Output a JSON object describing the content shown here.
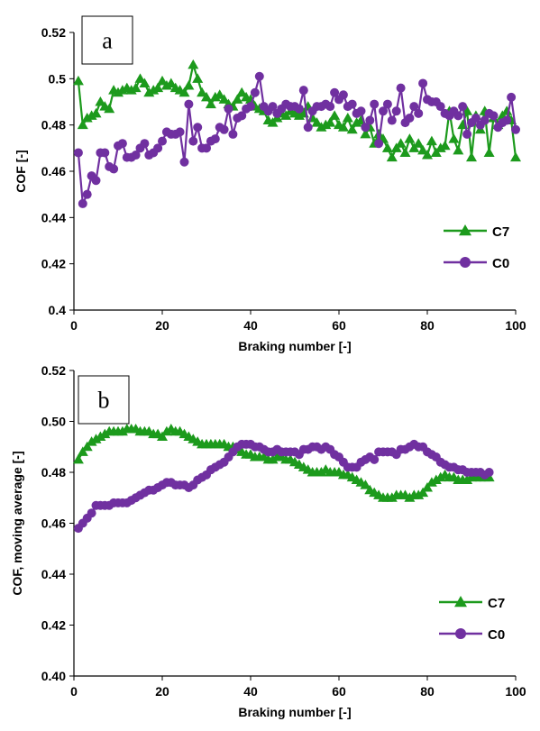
{
  "chart_data": [
    {
      "panel_label": "a",
      "type": "line",
      "title": "",
      "xlabel": "Braking number [-]",
      "ylabel": "COF [-]",
      "xlim": [
        0,
        100
      ],
      "ylim": [
        0.4,
        0.52
      ],
      "xticks": [
        0,
        20,
        40,
        60,
        80,
        100
      ],
      "yticks": [
        0.4,
        0.42,
        0.44,
        0.46,
        0.48,
        0.5,
        0.52
      ],
      "ytick_labels": [
        "0.4",
        "0.42",
        "0.44",
        "0.46",
        "0.48",
        "0.5",
        "0.52"
      ],
      "grid": false,
      "legend": "right",
      "series": [
        {
          "name": "C7",
          "color": "#1c9a1c",
          "marker": "triangle",
          "x": [
            1,
            2,
            3,
            4,
            5,
            6,
            7,
            8,
            9,
            10,
            11,
            12,
            13,
            14,
            15,
            16,
            17,
            18,
            19,
            20,
            21,
            22,
            23,
            24,
            25,
            26,
            27,
            28,
            29,
            30,
            31,
            32,
            33,
            34,
            35,
            36,
            37,
            38,
            39,
            40,
            41,
            42,
            43,
            44,
            45,
            46,
            47,
            48,
            49,
            50,
            51,
            52,
            53,
            54,
            55,
            56,
            57,
            58,
            59,
            60,
            61,
            62,
            63,
            64,
            65,
            66,
            67,
            68,
            69,
            70,
            71,
            72,
            73,
            74,
            75,
            76,
            77,
            78,
            79,
            80,
            81,
            82,
            83,
            84,
            85,
            86,
            87,
            88,
            89,
            90,
            91,
            92,
            93,
            94,
            95,
            96,
            97,
            98,
            99,
            100
          ],
          "y": [
            0.499,
            0.48,
            0.483,
            0.484,
            0.485,
            0.49,
            0.488,
            0.487,
            0.495,
            0.494,
            0.495,
            0.496,
            0.495,
            0.496,
            0.5,
            0.498,
            0.494,
            0.495,
            0.496,
            0.499,
            0.497,
            0.498,
            0.496,
            0.495,
            0.494,
            0.497,
            0.506,
            0.5,
            0.494,
            0.492,
            0.489,
            0.492,
            0.493,
            0.491,
            0.489,
            0.488,
            0.491,
            0.494,
            0.492,
            0.491,
            0.488,
            0.487,
            0.486,
            0.482,
            0.481,
            0.483,
            0.485,
            0.484,
            0.486,
            0.485,
            0.484,
            0.485,
            0.488,
            0.483,
            0.481,
            0.479,
            0.48,
            0.481,
            0.484,
            0.48,
            0.479,
            0.483,
            0.478,
            0.481,
            0.482,
            0.476,
            0.479,
            0.472,
            0.476,
            0.474,
            0.47,
            0.466,
            0.47,
            0.472,
            0.468,
            0.474,
            0.47,
            0.472,
            0.469,
            0.467,
            0.473,
            0.468,
            0.47,
            0.471,
            0.486,
            0.474,
            0.469,
            0.48,
            0.486,
            0.466,
            0.484,
            0.478,
            0.486,
            0.468,
            0.483,
            0.48,
            0.484,
            0.486,
            0.482,
            0.466
          ]
        },
        {
          "name": "C0",
          "color": "#7030a0",
          "marker": "circle",
          "x": [
            1,
            2,
            3,
            4,
            5,
            6,
            7,
            8,
            9,
            10,
            11,
            12,
            13,
            14,
            15,
            16,
            17,
            18,
            19,
            20,
            21,
            22,
            23,
            24,
            25,
            26,
            27,
            28,
            29,
            30,
            31,
            32,
            33,
            34,
            35,
            36,
            37,
            38,
            39,
            40,
            41,
            42,
            43,
            44,
            45,
            46,
            47,
            48,
            49,
            50,
            51,
            52,
            53,
            54,
            55,
            56,
            57,
            58,
            59,
            60,
            61,
            62,
            63,
            64,
            65,
            66,
            67,
            68,
            69,
            70,
            71,
            72,
            73,
            74,
            75,
            76,
            77,
            78,
            79,
            80,
            81,
            82,
            83,
            84,
            85,
            86,
            87,
            88,
            89,
            90,
            91,
            92,
            93,
            94,
            95,
            96,
            97,
            98,
            99,
            100
          ],
          "y": [
            0.468,
            0.446,
            0.45,
            0.458,
            0.456,
            0.468,
            0.468,
            0.462,
            0.461,
            0.471,
            0.472,
            0.466,
            0.466,
            0.467,
            0.47,
            0.472,
            0.467,
            0.468,
            0.47,
            0.473,
            0.477,
            0.476,
            0.476,
            0.477,
            0.464,
            0.489,
            0.473,
            0.479,
            0.47,
            0.47,
            0.473,
            0.474,
            0.479,
            0.478,
            0.487,
            0.476,
            0.483,
            0.484,
            0.487,
            0.488,
            0.494,
            0.501,
            0.488,
            0.486,
            0.488,
            0.485,
            0.487,
            0.489,
            0.488,
            0.488,
            0.487,
            0.495,
            0.479,
            0.486,
            0.488,
            0.488,
            0.489,
            0.488,
            0.494,
            0.491,
            0.493,
            0.488,
            0.489,
            0.485,
            0.486,
            0.479,
            0.482,
            0.489,
            0.472,
            0.486,
            0.489,
            0.482,
            0.486,
            0.496,
            0.481,
            0.483,
            0.488,
            0.485,
            0.498,
            0.491,
            0.49,
            0.49,
            0.488,
            0.485,
            0.484,
            0.486,
            0.484,
            0.488,
            0.476,
            0.481,
            0.483,
            0.48,
            0.482,
            0.485,
            0.484,
            0.479,
            0.481,
            0.482,
            0.492,
            0.478
          ]
        }
      ]
    },
    {
      "panel_label": "b",
      "type": "line",
      "title": "",
      "xlabel": "Braking number [-]",
      "ylabel": "COF, moving average [-]",
      "xlim": [
        0,
        100
      ],
      "ylim": [
        0.4,
        0.52
      ],
      "xticks": [
        0,
        20,
        40,
        60,
        80,
        100
      ],
      "yticks": [
        0.4,
        0.42,
        0.44,
        0.46,
        0.48,
        0.5,
        0.52
      ],
      "ytick_labels": [
        "0.40",
        "0.42",
        "0.44",
        "0.46",
        "0.48",
        "0.50",
        "0.52"
      ],
      "grid": false,
      "legend": "right",
      "series": [
        {
          "name": "C7",
          "color": "#1c9a1c",
          "marker": "triangle",
          "x": [
            1,
            2,
            3,
            4,
            5,
            6,
            7,
            8,
            9,
            10,
            11,
            12,
            13,
            14,
            15,
            16,
            17,
            18,
            19,
            20,
            21,
            22,
            23,
            24,
            25,
            26,
            27,
            28,
            29,
            30,
            31,
            32,
            33,
            34,
            35,
            36,
            37,
            38,
            39,
            40,
            41,
            42,
            43,
            44,
            45,
            46,
            47,
            48,
            49,
            50,
            51,
            52,
            53,
            54,
            55,
            56,
            57,
            58,
            59,
            60,
            61,
            62,
            63,
            64,
            65,
            66,
            67,
            68,
            69,
            70,
            71,
            72,
            73,
            74,
            75,
            76,
            77,
            78,
            79,
            80,
            81,
            82,
            83,
            84,
            85,
            86,
            87,
            88,
            89,
            90,
            91,
            92,
            93,
            94
          ],
          "y": [
            0.485,
            0.488,
            0.49,
            0.492,
            0.493,
            0.494,
            0.495,
            0.496,
            0.496,
            0.496,
            0.496,
            0.497,
            0.497,
            0.497,
            0.496,
            0.496,
            0.496,
            0.495,
            0.495,
            0.494,
            0.496,
            0.497,
            0.496,
            0.496,
            0.495,
            0.494,
            0.493,
            0.492,
            0.491,
            0.491,
            0.491,
            0.491,
            0.491,
            0.491,
            0.49,
            0.49,
            0.489,
            0.488,
            0.487,
            0.487,
            0.486,
            0.486,
            0.486,
            0.485,
            0.485,
            0.486,
            0.486,
            0.485,
            0.485,
            0.484,
            0.483,
            0.482,
            0.481,
            0.48,
            0.48,
            0.48,
            0.481,
            0.48,
            0.48,
            0.48,
            0.479,
            0.479,
            0.478,
            0.477,
            0.476,
            0.475,
            0.473,
            0.472,
            0.471,
            0.47,
            0.47,
            0.47,
            0.471,
            0.471,
            0.471,
            0.47,
            0.471,
            0.471,
            0.472,
            0.474,
            0.476,
            0.477,
            0.478,
            0.479,
            0.478,
            0.478,
            0.477,
            0.477,
            0.477,
            0.478,
            0.478,
            0.478,
            0.478,
            0.478
          ]
        },
        {
          "name": "C0",
          "color": "#7030a0",
          "marker": "circle",
          "x": [
            1,
            2,
            3,
            4,
            5,
            6,
            7,
            8,
            9,
            10,
            11,
            12,
            13,
            14,
            15,
            16,
            17,
            18,
            19,
            20,
            21,
            22,
            23,
            24,
            25,
            26,
            27,
            28,
            29,
            30,
            31,
            32,
            33,
            34,
            35,
            36,
            37,
            38,
            39,
            40,
            41,
            42,
            43,
            44,
            45,
            46,
            47,
            48,
            49,
            50,
            51,
            52,
            53,
            54,
            55,
            56,
            57,
            58,
            59,
            60,
            61,
            62,
            63,
            64,
            65,
            66,
            67,
            68,
            69,
            70,
            71,
            72,
            73,
            74,
            75,
            76,
            77,
            78,
            79,
            80,
            81,
            82,
            83,
            84,
            85,
            86,
            87,
            88,
            89,
            90,
            91,
            92,
            93,
            94
          ],
          "y": [
            0.458,
            0.46,
            0.462,
            0.464,
            0.467,
            0.467,
            0.467,
            0.467,
            0.468,
            0.468,
            0.468,
            0.468,
            0.469,
            0.47,
            0.471,
            0.472,
            0.473,
            0.473,
            0.474,
            0.475,
            0.476,
            0.476,
            0.475,
            0.475,
            0.475,
            0.474,
            0.475,
            0.477,
            0.478,
            0.479,
            0.481,
            0.482,
            0.483,
            0.484,
            0.486,
            0.488,
            0.49,
            0.491,
            0.491,
            0.491,
            0.49,
            0.49,
            0.489,
            0.488,
            0.488,
            0.489,
            0.488,
            0.488,
            0.488,
            0.488,
            0.487,
            0.489,
            0.489,
            0.49,
            0.49,
            0.489,
            0.49,
            0.489,
            0.487,
            0.486,
            0.484,
            0.482,
            0.482,
            0.482,
            0.484,
            0.485,
            0.486,
            0.485,
            0.488,
            0.488,
            0.488,
            0.488,
            0.487,
            0.489,
            0.489,
            0.49,
            0.491,
            0.49,
            0.49,
            0.488,
            0.487,
            0.486,
            0.484,
            0.483,
            0.482,
            0.482,
            0.481,
            0.481,
            0.48,
            0.48,
            0.48,
            0.48,
            0.479,
            0.48
          ]
        }
      ]
    }
  ]
}
